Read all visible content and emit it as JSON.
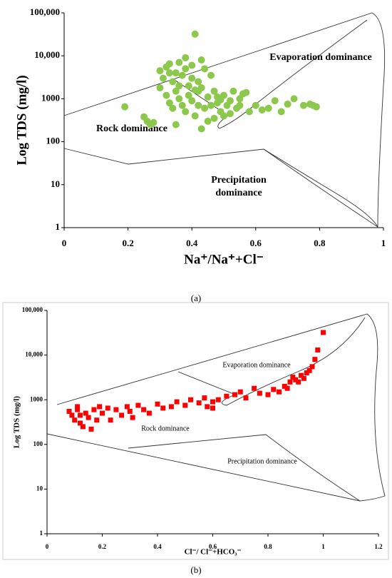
{
  "chart_data": [
    {
      "type": "scatter",
      "caption": "(a)",
      "x_label": "Na⁺/Na⁺+Cl⁻",
      "y_label": "Log TDS (mg/l)",
      "yscale": "log",
      "xlim": [
        0,
        1
      ],
      "ylim": [
        1,
        100000
      ],
      "xticks": [
        0,
        0.2,
        0.4,
        0.6,
        0.8,
        1
      ],
      "yticks": [
        1,
        10,
        100,
        1000,
        {
          "value": 10000,
          "label": "10,000"
        },
        {
          "value": 100000,
          "label": "100,000"
        }
      ],
      "annotations": [
        {
          "text": [
            "Evaporation dominance"
          ]
        },
        {
          "text": [
            "Rock dominance"
          ]
        },
        {
          "text": [
            "Precipitation",
            "dominance"
          ]
        }
      ],
      "marker": "circle",
      "series": [
        {
          "color": "#8cc84b",
          "x": [
            0.19,
            0.25,
            0.26,
            0.27,
            0.28,
            0.3,
            0.31,
            0.32,
            0.33,
            0.34,
            0.35,
            0.36,
            0.37,
            0.38,
            0.39,
            0.4,
            0.41,
            0.42,
            0.3,
            0.32,
            0.33,
            0.34,
            0.35,
            0.36,
            0.37,
            0.38,
            0.39,
            0.4,
            0.41,
            0.42,
            0.43,
            0.44,
            0.45,
            0.46,
            0.47,
            0.48,
            0.49,
            0.5,
            0.51,
            0.52,
            0.53,
            0.54,
            0.55,
            0.56,
            0.57,
            0.58,
            0.6,
            0.62,
            0.64,
            0.66,
            0.68,
            0.7,
            0.72,
            0.75,
            0.77,
            0.78,
            0.79,
            0.43,
            0.45,
            0.43,
            0.47,
            0.5,
            0.35,
            0.38,
            0.33,
            0.36,
            0.44,
            0.46,
            0.48,
            0.52,
            0.55,
            0.4,
            0.41,
            0.42,
            0.49
          ],
          "values": [
            650,
            380,
            300,
            250,
            280,
            4500,
            3000,
            5500,
            6500,
            2500,
            4000,
            7000,
            3500,
            5000,
            2000,
            6000,
            32000,
            1500,
            1800,
            1200,
            800,
            600,
            1500,
            1000,
            700,
            500,
            1200,
            900,
            400,
            2500,
            1800,
            600,
            1100,
            3500,
            1500,
            800,
            500,
            1200,
            700,
            900,
            1500,
            600,
            1000,
            1300,
            1400,
            500,
            700,
            550,
            600,
            900,
            500,
            750,
            1000,
            700,
            750,
            700,
            650,
            8000,
            300,
            200,
            350,
            400,
            250,
            9000,
            4000,
            2000,
            5000,
            700,
            1100,
            450,
            700,
            3000,
            1600,
            700,
            950
          ]
        }
      ]
    },
    {
      "type": "scatter",
      "caption": "(b)",
      "x_label": "Cl⁻/ Cl⁻+HCO₃⁻",
      "y_label": "Log TDS (mg/l)",
      "yscale": "log",
      "xlim": [
        0,
        1.2
      ],
      "ylim": [
        1,
        100000
      ],
      "xticks": [
        0,
        0.2,
        0.4,
        0.6,
        0.8,
        1,
        1.2
      ],
      "yticks": [
        1,
        10,
        100,
        1000,
        {
          "value": 10000,
          "label": "10,000"
        },
        {
          "value": 100000,
          "label": "100,000"
        }
      ],
      "annotations": [
        {
          "text": [
            "Evaporation dominance"
          ]
        },
        {
          "text": [
            "Rock dominance"
          ]
        },
        {
          "text": [
            "Precipitation dominance"
          ]
        }
      ],
      "marker": "square",
      "series": [
        {
          "color": "#ff0000",
          "x": [
            0.08,
            0.09,
            0.1,
            0.11,
            0.11,
            0.12,
            0.12,
            0.13,
            0.14,
            0.15,
            0.16,
            0.17,
            0.18,
            0.19,
            0.2,
            0.22,
            0.23,
            0.25,
            0.27,
            0.29,
            0.3,
            0.31,
            0.33,
            0.35,
            0.37,
            0.4,
            0.42,
            0.45,
            0.47,
            0.5,
            0.52,
            0.55,
            0.57,
            0.58,
            0.6,
            0.62,
            0.65,
            0.68,
            0.7,
            0.72,
            0.75,
            0.77,
            0.8,
            0.82,
            0.84,
            0.86,
            0.88,
            0.89,
            0.9,
            0.91,
            0.92,
            0.93,
            0.94,
            0.95,
            0.96,
            0.97,
            0.98,
            1.0,
            0.87,
            0.6
          ],
          "values": [
            550,
            450,
            350,
            600,
            700,
            300,
            450,
            250,
            500,
            400,
            220,
            600,
            350,
            700,
            500,
            650,
            350,
            600,
            450,
            700,
            550,
            400,
            750,
            600,
            500,
            800,
            650,
            700,
            900,
            750,
            1000,
            850,
            1100,
            700,
            900,
            1000,
            1200,
            1300,
            1500,
            1100,
            1800,
            1400,
            1300,
            1700,
            1500,
            2000,
            2500,
            3200,
            2800,
            2500,
            3500,
            3000,
            4000,
            4500,
            5500,
            8000,
            13000,
            32000,
            1800,
            650
          ]
        }
      ]
    }
  ]
}
